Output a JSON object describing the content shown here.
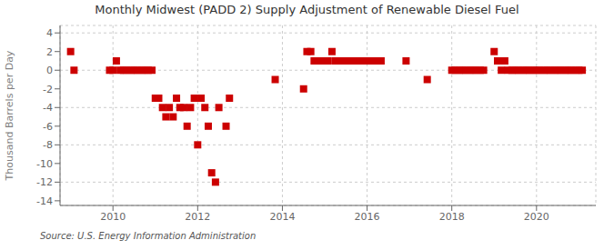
{
  "chart_data": {
    "type": "scatter",
    "title": "Monthly Midwest (PADD 2) Supply Adjustment of Renewable Diesel Fuel",
    "ylabel": "Thousand Barrels per Day",
    "annotation": "Source: U.S. Energy Information Administration",
    "color": "#cc0000",
    "marker": "square",
    "grid": true,
    "xlim": [
      2008.75,
      2021.4
    ],
    "ylim": [
      -14.5,
      4.8
    ],
    "xticks": [
      2010,
      2012,
      2014,
      2016,
      2018,
      2020
    ],
    "yticks": [
      -14,
      -12,
      -10,
      -8,
      -6,
      -4,
      -2,
      0,
      2,
      4
    ],
    "x": [
      2009.0,
      2009.08,
      2009.92,
      2010.0,
      2010.08,
      2010.17,
      2010.25,
      2010.33,
      2010.42,
      2010.5,
      2010.58,
      2010.67,
      2010.75,
      2010.83,
      2010.92,
      2011.0,
      2011.08,
      2011.17,
      2011.25,
      2011.33,
      2011.42,
      2011.5,
      2011.58,
      2011.67,
      2011.75,
      2011.83,
      2011.92,
      2012.0,
      2012.08,
      2012.17,
      2012.25,
      2012.33,
      2012.42,
      2012.5,
      2012.67,
      2012.75,
      2013.83,
      2014.5,
      2014.58,
      2014.67,
      2014.75,
      2014.83,
      2014.92,
      2015.0,
      2015.08,
      2015.17,
      2015.25,
      2015.33,
      2015.42,
      2015.5,
      2015.58,
      2015.67,
      2015.75,
      2015.83,
      2015.92,
      2016.0,
      2016.08,
      2016.17,
      2016.33,
      2016.92,
      2017.42,
      2018.0,
      2018.08,
      2018.17,
      2018.25,
      2018.33,
      2018.42,
      2018.5,
      2018.58,
      2018.67,
      2018.75,
      2019.0,
      2019.08,
      2019.17,
      2019.25,
      2019.33,
      2019.42,
      2019.5,
      2019.58,
      2019.67,
      2019.75,
      2019.83,
      2019.92,
      2020.0,
      2020.08,
      2020.17,
      2020.25,
      2020.33,
      2020.42,
      2020.5,
      2020.58,
      2020.67,
      2020.75,
      2020.83,
      2020.92,
      2021.0,
      2021.08
    ],
    "values": [
      2,
      0,
      0,
      0,
      1,
      0,
      0,
      0,
      0,
      0,
      0,
      0,
      0,
      0,
      0,
      -3,
      -3,
      -4,
      -5,
      -4,
      -5,
      -3,
      -4,
      -4,
      -6,
      -4,
      -3,
      -8,
      -3,
      -4,
      -6,
      -11,
      -12,
      -4,
      -6,
      -3,
      -1,
      -2,
      2,
      2,
      1,
      1,
      1,
      1,
      1,
      2,
      1,
      1,
      1,
      1,
      1,
      1,
      1,
      1,
      1,
      1,
      1,
      1,
      1,
      1,
      -1,
      0,
      0,
      0,
      0,
      0,
      0,
      0,
      0,
      0,
      0,
      2,
      1,
      0,
      1,
      0,
      0,
      0,
      0,
      0,
      0,
      0,
      0,
      0,
      0,
      0,
      0,
      0,
      0,
      0,
      0,
      0,
      0,
      0,
      0,
      0,
      0
    ]
  }
}
